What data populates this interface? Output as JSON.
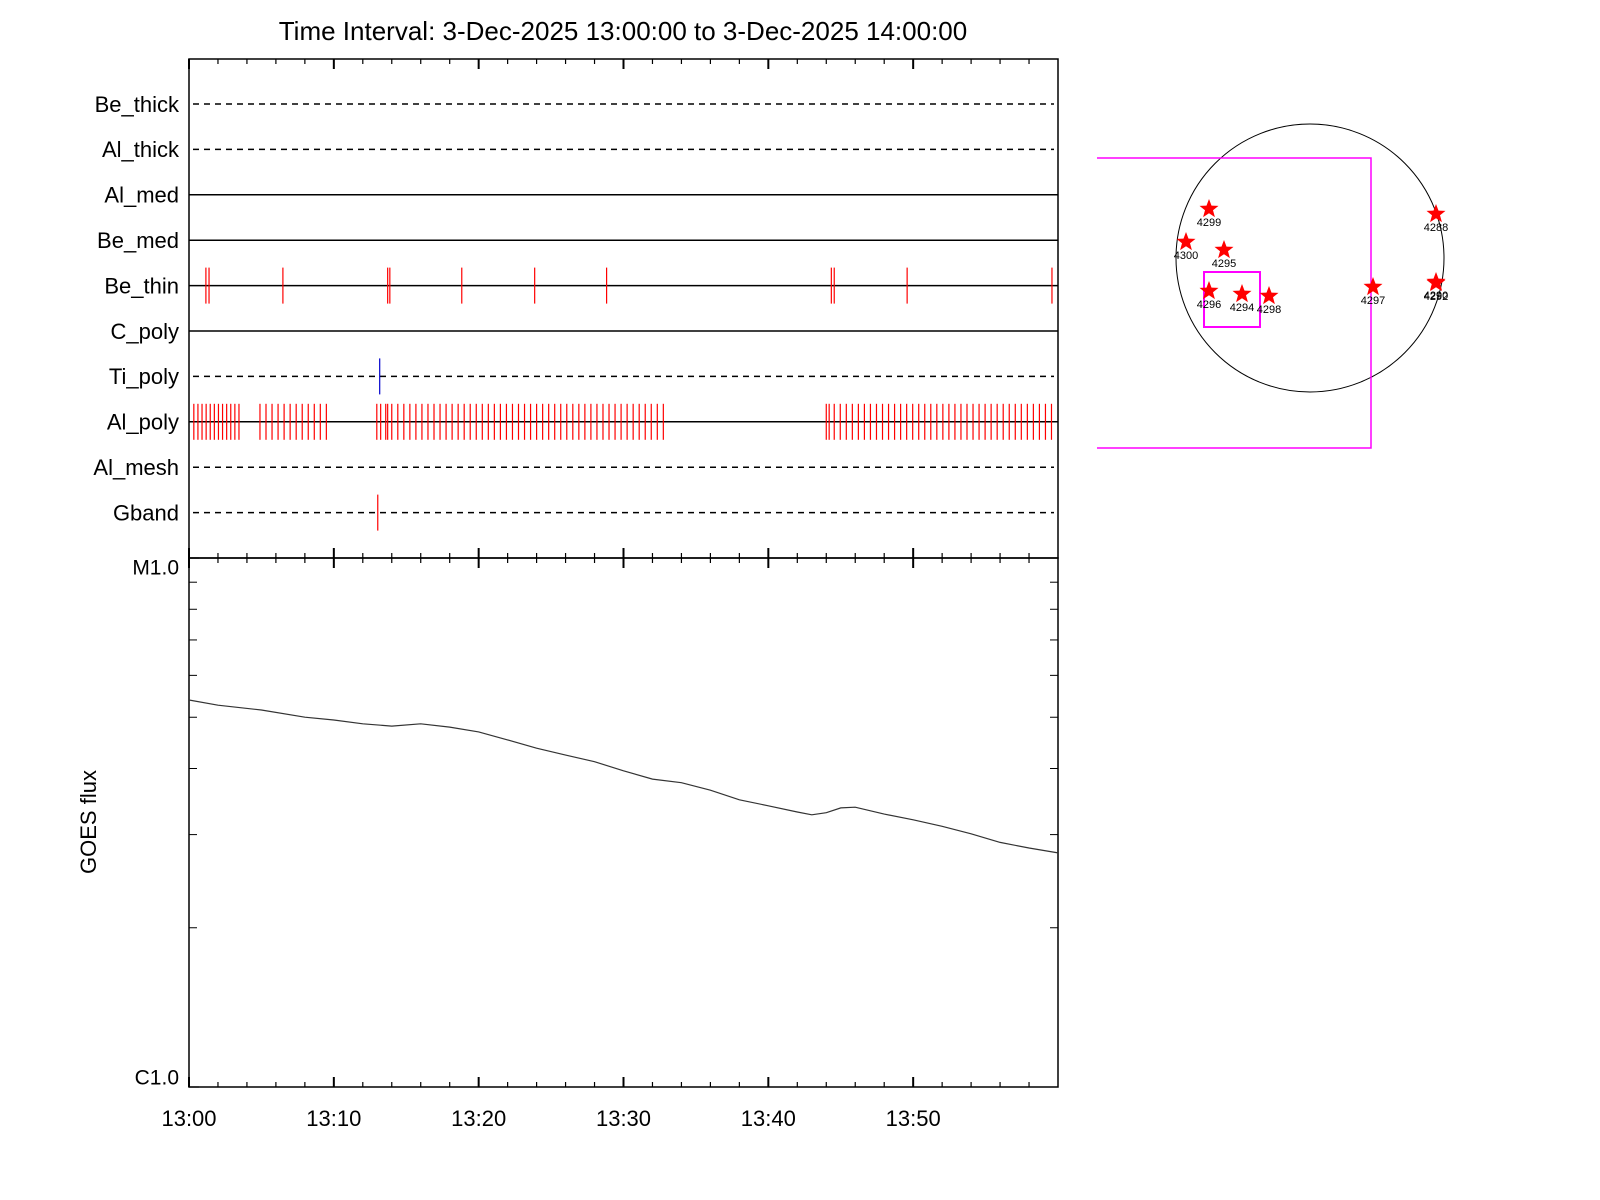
{
  "chart_data": [
    {
      "type": "timeline",
      "title": "Time Interval:  3-Dec-2025 13:00:00 to  3-Dec-2025 14:00:00",
      "xlim": [
        "13:00:00",
        "14:00:00"
      ],
      "rows": [
        {
          "name": "Be_thick",
          "line": "dashed",
          "color": "#ff0000",
          "x": []
        },
        {
          "name": "Al_thick",
          "line": "dashed",
          "color": "#ff0000",
          "x": []
        },
        {
          "name": "Al_med",
          "line": "solid",
          "color": "#ff0000",
          "x": []
        },
        {
          "name": "Be_med",
          "line": "solid",
          "color": "#ff0000",
          "x": []
        },
        {
          "name": "Be_thin",
          "line": "solid",
          "color": "#ff0000",
          "x": [
            "13:01:10",
            "13:01:23",
            "13:06:29",
            "13:13:43",
            "13:13:52",
            "13:18:50",
            "13:23:52",
            "13:28:50",
            "13:44:21",
            "13:44:33",
            "13:49:35",
            "13:59:35"
          ]
        },
        {
          "name": "C_poly",
          "line": "solid",
          "color": "#ff0000",
          "x": []
        },
        {
          "name": "Ti_poly",
          "line": "dashed",
          "color": "#0000cc",
          "x": [
            "13:13:10"
          ]
        },
        {
          "name": "Al_poly",
          "line": "solid",
          "color": "#ff0000",
          "x": [
            "13:00:20",
            "13:00:37",
            "13:00:54",
            "13:01:11",
            "13:01:28",
            "13:01:45",
            "13:02:02",
            "13:02:19",
            "13:02:36",
            "13:02:53",
            "13:03:10",
            "13:03:27",
            "13:04:54",
            "13:05:19",
            "13:05:44",
            "13:06:09",
            "13:06:34",
            "13:06:59",
            "13:07:24",
            "13:07:49",
            "13:08:14",
            "13:08:39",
            "13:09:04",
            "13:09:29",
            "13:12:58",
            "13:13:14",
            "13:13:35",
            "13:13:43",
            "13:14:00",
            "13:14:25",
            "13:14:50",
            "13:15:15",
            "13:15:40",
            "13:16:05",
            "13:16:30",
            "13:16:55",
            "13:17:20",
            "13:17:45",
            "13:18:10",
            "13:18:35",
            "13:19:00",
            "13:19:25",
            "13:19:50",
            "13:20:15",
            "13:20:40",
            "13:21:05",
            "13:21:30",
            "13:21:55",
            "13:22:20",
            "13:22:45",
            "13:23:10",
            "13:23:35",
            "13:24:00",
            "13:24:25",
            "13:24:50",
            "13:25:15",
            "13:25:40",
            "13:26:05",
            "13:26:30",
            "13:26:55",
            "13:27:20",
            "13:27:45",
            "13:28:10",
            "13:28:35",
            "13:29:00",
            "13:29:25",
            "13:29:50",
            "13:30:15",
            "13:30:40",
            "13:31:05",
            "13:31:30",
            "13:31:55",
            "13:32:20",
            "13:32:45",
            "13:44:00",
            "13:44:12",
            "13:44:33",
            "13:44:58",
            "13:45:23",
            "13:45:48",
            "13:46:13",
            "13:46:38",
            "13:47:03",
            "13:47:28",
            "13:47:53",
            "13:48:18",
            "13:48:43",
            "13:49:08",
            "13:49:33",
            "13:49:58",
            "13:50:23",
            "13:50:48",
            "13:51:13",
            "13:51:38",
            "13:52:03",
            "13:52:28",
            "13:52:53",
            "13:53:18",
            "13:53:43",
            "13:54:08",
            "13:54:33",
            "13:54:58",
            "13:55:23",
            "13:55:48",
            "13:56:13",
            "13:56:38",
            "13:57:03",
            "13:57:28",
            "13:57:53",
            "13:58:18",
            "13:58:43",
            "13:59:08",
            "13:59:33"
          ]
        },
        {
          "name": "Al_mesh",
          "line": "dashed",
          "color": "#ff0000",
          "x": []
        },
        {
          "name": "Gband",
          "line": "dashed",
          "color": "#ff0000",
          "x": [
            "13:13:02"
          ]
        }
      ]
    },
    {
      "type": "line",
      "ylabel": "GOES flux",
      "color": "#333333",
      "xlim": [
        "13:00",
        "14:00"
      ],
      "xticks": [
        "13:00",
        "13:10",
        "13:20",
        "13:30",
        "13:40",
        "13:50"
      ],
      "xminor_per_major": 5,
      "ylog": true,
      "ylim": [
        1e-06,
        1e-05
      ],
      "yticks": [
        {
          "value": 1e-05,
          "label": "M1.0"
        },
        {
          "value": 1e-06,
          "label": "C1.0"
        }
      ],
      "yminor": [
        2e-06,
        3e-06,
        4e-06,
        5e-06,
        6e-06,
        7e-06,
        8e-06,
        9e-06
      ],
      "x": [
        "13:00",
        "13:02",
        "13:05",
        "13:08",
        "13:10",
        "13:12",
        "13:14",
        "13:16",
        "13:18",
        "13:20",
        "13:22",
        "13:24",
        "13:26",
        "13:28",
        "13:30",
        "13:32",
        "13:34",
        "13:36",
        "13:38",
        "13:40",
        "13:42",
        "13:43",
        "13:44",
        "13:45",
        "13:46",
        "13:48",
        "13:50",
        "13:52",
        "13:54",
        "13:56",
        "13:58",
        "14:00"
      ],
      "values": [
        5.39e-06,
        5.27e-06,
        5.16e-06,
        5e-06,
        4.94e-06,
        4.86e-06,
        4.81e-06,
        4.86e-06,
        4.79e-06,
        4.69e-06,
        4.53e-06,
        4.37e-06,
        4.24e-06,
        4.12e-06,
        3.96e-06,
        3.82e-06,
        3.76e-06,
        3.64e-06,
        3.49e-06,
        3.4e-06,
        3.31e-06,
        3.27e-06,
        3.3e-06,
        3.37e-06,
        3.38e-06,
        3.28e-06,
        3.2e-06,
        3.11e-06,
        3.01e-06,
        2.9e-06,
        2.83e-06,
        2.77e-06
      ]
    },
    {
      "type": "map",
      "star_color": "#ff0000",
      "box_color": "#ff00ff",
      "regions": [
        "4299",
        "4300",
        "4295",
        "4296",
        "4294",
        "4298",
        "4297",
        "4288",
        "4290",
        "4292"
      ]
    }
  ]
}
